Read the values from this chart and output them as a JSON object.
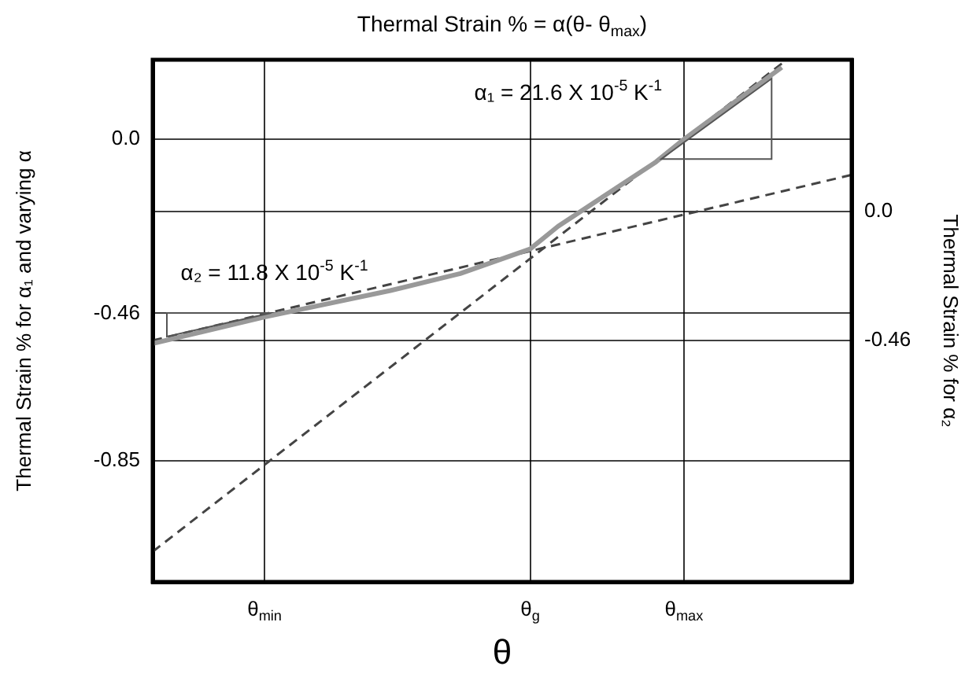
{
  "chart_data": {
    "type": "line",
    "title": "Thermal Strain % = α(θ- θ$_{max}$)",
    "xlabel": "θ",
    "ylabel": "Thermal Strain % for α₁ and varying α",
    "y2label": "Thermal Strain % for α₂",
    "categories": [
      null,
      null,
      null,
      null,
      null,
      null,
      null,
      null,
      "θ$_{min}$",
      null,
      null,
      null,
      null,
      null,
      null,
      null,
      null,
      null,
      null,
      null,
      null,
      null,
      null,
      null,
      null,
      null,
      null,
      "θ$_{g}$",
      null,
      null,
      null,
      null,
      null,
      null,
      null,
      null,
      null,
      null,
      "θ$_{max}$",
      null,
      null,
      null,
      null,
      null,
      null,
      null,
      null,
      null,
      null,
      null,
      null
    ],
    "ylim": [
      -1.17,
      0.21
    ],
    "yticks": [
      {
        "value": 0,
        "label": "0.0"
      },
      -0.46,
      -0.85
    ],
    "y2lim": [
      -1.32,
      0.54
    ],
    "y2ticks": [
      {
        "value": 0,
        "label": "0.0"
      },
      -0.46
    ],
    "grid": true,
    "marker": "none",
    "series": [
      {
        "color": "#999999",
        "line_style": "solid",
        "values": [
          -0.54,
          null,
          null,
          null,
          null,
          null,
          null,
          null,
          -0.47,
          null,
          null,
          null,
          null,
          null,
          null,
          null,
          null,
          -0.4,
          null,
          null,
          null,
          null,
          -0.355,
          null,
          null,
          null,
          null,
          -0.29,
          null,
          -0.23,
          null,
          null,
          null,
          null,
          null,
          null,
          -0.06,
          null,
          0,
          null,
          null,
          null,
          null,
          null,
          null,
          0.19,
          null,
          null,
          null,
          null,
          null
        ]
      },
      {
        "color": "#444444",
        "line_style": "dashed",
        "values": [
          -1.09,
          null,
          null,
          null,
          null,
          null,
          null,
          null,
          null,
          null,
          null,
          null,
          null,
          null,
          null,
          null,
          null,
          null,
          null,
          null,
          null,
          null,
          null,
          null,
          null,
          null,
          null,
          null,
          null,
          null,
          null,
          null,
          null,
          null,
          null,
          null,
          null,
          null,
          0,
          null,
          null,
          null,
          null,
          null,
          null,
          0.2,
          null,
          null,
          null,
          null,
          null
        ]
      },
      {
        "color": "#444444",
        "line_style": "dashed",
        "axis": "y2",
        "values": [
          -0.46,
          null,
          null,
          null,
          null,
          null,
          null,
          null,
          null,
          null,
          null,
          null,
          null,
          null,
          null,
          null,
          null,
          null,
          null,
          null,
          null,
          null,
          null,
          null,
          null,
          null,
          null,
          null,
          null,
          null,
          null,
          null,
          null,
          null,
          null,
          null,
          null,
          null,
          null,
          null,
          null,
          null,
          null,
          null,
          null,
          null,
          null,
          null,
          null,
          null,
          0.13
        ]
      }
    ],
    "annotations": [
      "α₁ = 21.6 X 10$^{-5}$ K$^{-1}$",
      "α₂ = 11.8 X 10$^{-5}$ K$^{-1}$"
    ]
  }
}
